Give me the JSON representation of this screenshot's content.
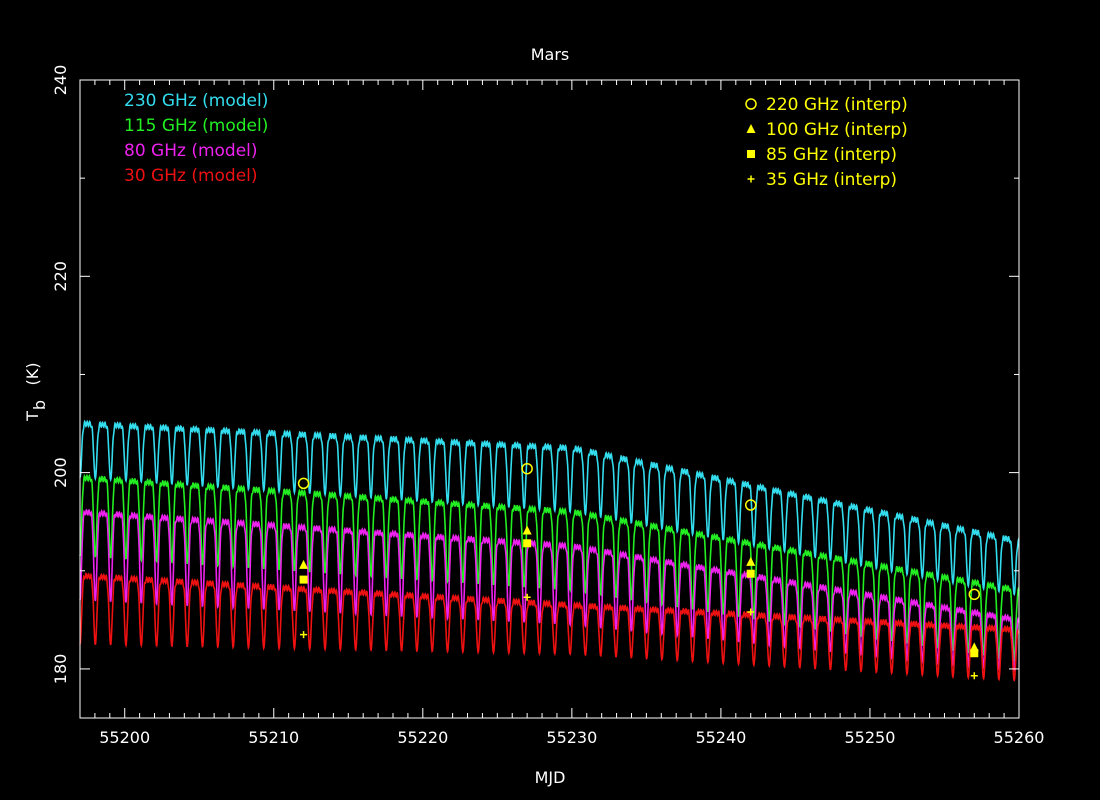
{
  "chart_data": {
    "type": "line",
    "title": "Mars",
    "xlabel": "MJD",
    "ylabel_main": "T",
    "ylabel_sub": "b",
    "ylabel_unit": "(K)",
    "xlim": [
      55197,
      55260
    ],
    "ylim": [
      175,
      240
    ],
    "xticks": [
      55200,
      55210,
      55220,
      55230,
      55240,
      55250,
      55260
    ],
    "yticks": [
      180,
      200,
      220,
      240
    ],
    "xtick_labels": [
      "55200",
      "55210",
      "55220",
      "55230",
      "55240",
      "55250",
      "55260"
    ],
    "ytick_labels": [
      "180",
      "200",
      "220",
      "240"
    ],
    "period_days": 1.0275,
    "model_series": [
      {
        "name": "230 GHz (model)",
        "color": "#33ddee",
        "max": [
          205.0,
          202.5,
          193.0
        ],
        "min": [
          199.5,
          196.0,
          187.5
        ]
      },
      {
        "name": "115 GHz (model)",
        "color": "#22ee22",
        "max": [
          199.5,
          196.0,
          188.0
        ],
        "min": [
          191.5,
          188.0,
          180.8
        ]
      },
      {
        "name": "80 GHz (model)",
        "color": "#ee22ee",
        "max": [
          196.0,
          192.5,
          185.0
        ],
        "min": [
          187.0,
          184.5,
          179.8
        ]
      },
      {
        "name": "30 GHz (model)",
        "color": "#ee1111",
        "max": [
          189.5,
          186.5,
          184.0
        ],
        "min": [
          182.5,
          181.5,
          178.8
        ]
      }
    ],
    "model_x": [
      55197,
      55230,
      55260
    ],
    "interp_series": [
      {
        "name": "220 GHz (interp)",
        "marker": "circle",
        "color": "#ffff00",
        "x": [
          55212,
          55227,
          55242,
          55257
        ],
        "y": [
          198.9,
          200.4,
          196.7,
          187.6
        ]
      },
      {
        "name": "100 GHz (interp)",
        "marker": "triangle",
        "color": "#ffff00",
        "x": [
          55212,
          55227,
          55242,
          55257
        ],
        "y": [
          190.6,
          194.1,
          190.9,
          182.2
        ]
      },
      {
        "name": "85 GHz (interp)",
        "marker": "square",
        "color": "#ffff00",
        "x": [
          55212,
          55227,
          55242,
          55257
        ],
        "y": [
          189.1,
          192.8,
          189.7,
          181.6
        ]
      },
      {
        "name": "35 GHz (interp)",
        "marker": "plus",
        "color": "#ffff00",
        "x": [
          55212,
          55227,
          55242,
          55257
        ],
        "y": [
          183.5,
          187.3,
          185.8,
          179.3
        ]
      }
    ],
    "legend_model_position": "top-left",
    "legend_interp_position": "top-right",
    "grid": false
  }
}
